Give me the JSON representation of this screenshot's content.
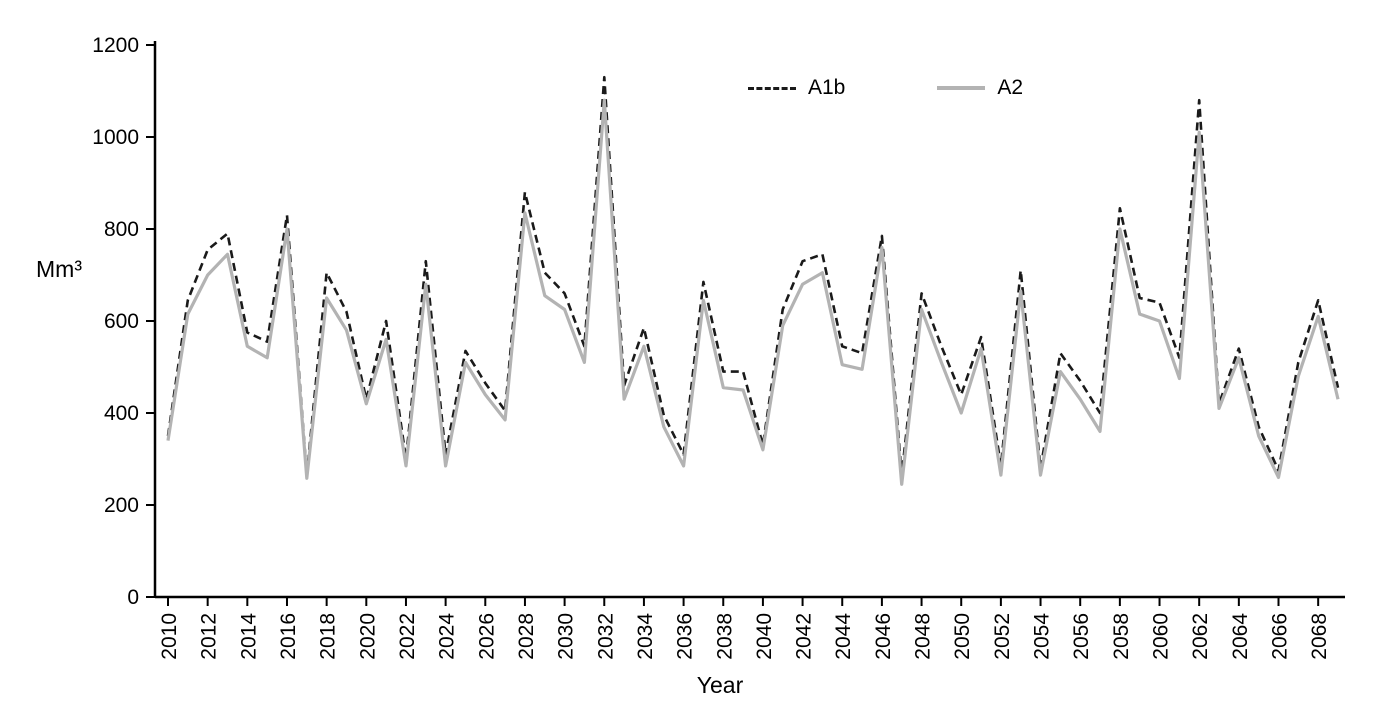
{
  "chart_data": {
    "type": "line",
    "title": "",
    "xlabel": "Year",
    "ylabel": "Mm³",
    "ylim": [
      0,
      1200
    ],
    "ytick_interval": 200,
    "grid": "off",
    "legend_position": "top-center-inside",
    "x": [
      2010,
      2011,
      2012,
      2013,
      2014,
      2015,
      2016,
      2017,
      2018,
      2019,
      2020,
      2021,
      2022,
      2023,
      2024,
      2025,
      2026,
      2027,
      2028,
      2029,
      2030,
      2031,
      2032,
      2033,
      2034,
      2035,
      2036,
      2037,
      2038,
      2039,
      2040,
      2041,
      2042,
      2043,
      2044,
      2045,
      2046,
      2047,
      2048,
      2049,
      2050,
      2051,
      2052,
      2053,
      2054,
      2055,
      2056,
      2057,
      2058,
      2059,
      2060,
      2061,
      2062,
      2063,
      2064,
      2065,
      2066,
      2067,
      2068,
      2069
    ],
    "xtick_labels": [
      "2010",
      "2012",
      "2014",
      "2016",
      "2018",
      "2020",
      "2022",
      "2024",
      "2026",
      "2028",
      "2030",
      "2032",
      "2034",
      "2036",
      "2038",
      "2040",
      "2042",
      "2044",
      "2046",
      "2048",
      "2050",
      "2052",
      "2054",
      "2056",
      "2058",
      "2060",
      "2062",
      "2064",
      "2066",
      "2068"
    ],
    "series": [
      {
        "name": "A1b",
        "style": "dashed",
        "color": "#1a1a1a",
        "width": 2.6,
        "dash": "8,5",
        "values": [
          350,
          645,
          755,
          790,
          575,
          555,
          830,
          265,
          705,
          620,
          430,
          600,
          300,
          730,
          310,
          535,
          465,
          405,
          880,
          705,
          660,
          545,
          1130,
          460,
          585,
          395,
          310,
          685,
          490,
          490,
          330,
          625,
          730,
          745,
          545,
          530,
          785,
          265,
          660,
          545,
          440,
          565,
          285,
          710,
          280,
          530,
          470,
          400,
          845,
          650,
          640,
          520,
          1080,
          420,
          540,
          370,
          275,
          510,
          645,
          455
        ]
      },
      {
        "name": "A2",
        "style": "solid",
        "color": "#b3b3b3",
        "width": 3.2,
        "dash": null,
        "values": [
          340,
          615,
          700,
          745,
          545,
          520,
          800,
          258,
          650,
          580,
          420,
          560,
          285,
          680,
          285,
          510,
          440,
          385,
          835,
          655,
          625,
          510,
          1080,
          430,
          545,
          370,
          285,
          645,
          455,
          450,
          320,
          590,
          680,
          705,
          505,
          495,
          760,
          245,
          625,
          510,
          400,
          540,
          265,
          665,
          265,
          490,
          430,
          360,
          800,
          615,
          600,
          475,
          1010,
          410,
          520,
          350,
          260,
          480,
          610,
          430
        ]
      }
    ]
  }
}
